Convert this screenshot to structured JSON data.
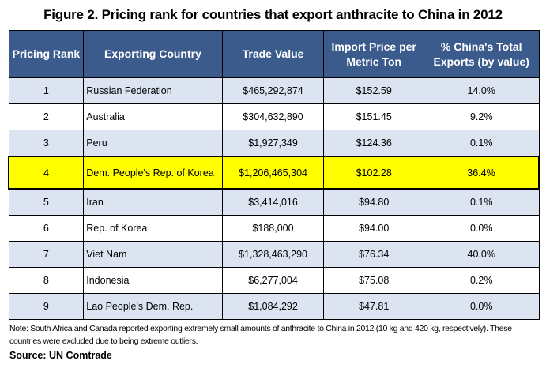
{
  "title": "Figure 2. Pricing rank for countries that export anthracite to China in 2012",
  "colors": {
    "header_bg": "#3b5b8d",
    "band": "#dbe4f0",
    "highlight": "#ffff00"
  },
  "table": {
    "headers": [
      "Pricing Rank",
      "Exporting Country",
      "Trade Value",
      "Import Price per Metric Ton",
      "% China's Total Exports (by value)"
    ],
    "highlighted_rank": "4",
    "rows": [
      [
        "1",
        "Russian Federation",
        "$465,292,874",
        "$152.59",
        "14.0%"
      ],
      [
        "2",
        "Australia",
        "$304,632,890",
        "$151.45",
        "9.2%"
      ],
      [
        "3",
        "Peru",
        "$1,927,349",
        "$124.36",
        "0.1%"
      ],
      [
        "4",
        "Dem. People's Rep. of Korea",
        "$1,206,465,304",
        "$102.28",
        "36.4%"
      ],
      [
        "5",
        "Iran",
        "$3,414,016",
        "$94.80",
        "0.1%"
      ],
      [
        "6",
        "Rep. of Korea",
        "$188,000",
        "$94.00",
        "0.0%"
      ],
      [
        "7",
        "Viet Nam",
        "$1,328,463,290",
        "$76.34",
        "40.0%"
      ],
      [
        "8",
        "Indonesia",
        "$6,277,004",
        "$75.08",
        "0.2%"
      ],
      [
        "9",
        "Lao People's Dem. Rep.",
        "$1,084,292",
        "$47.81",
        "0.0%"
      ]
    ]
  },
  "note": "Note: South Africa and Canada reported exporting  extremely small amounts of anthracite to China in 2012 (10 kg and 420 kg, respectively). These countries were excluded due to being extreme outliers.",
  "source": "Source: UN Comtrade"
}
